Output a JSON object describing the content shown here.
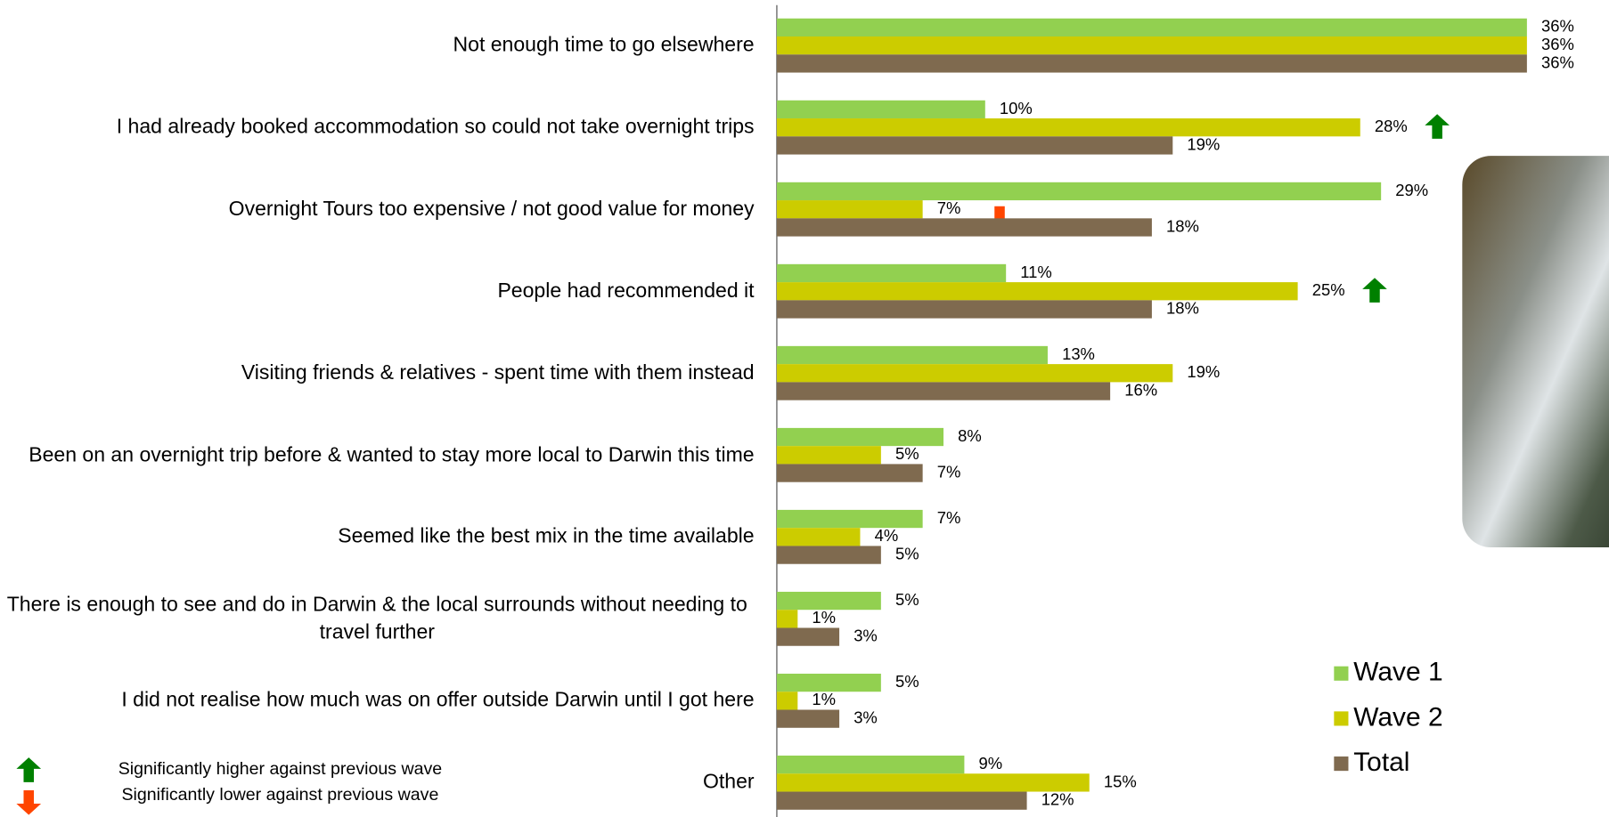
{
  "chart_data": {
    "type": "hbar",
    "categories": [
      "Not enough time to go elsewhere",
      "I had already booked accommodation so could not take overnight trips",
      "Overnight Tours too expensive / not good value for money",
      "People had recommended it",
      "Visiting friends & relatives - spent time with them instead",
      "Been on an overnight trip before & wanted to stay more local to Darwin this time",
      "Seemed like the best mix in the time available",
      "There is enough to see and do in Darwin & the local surrounds without needing to travel further",
      "I did not realise how much was on offer outside Darwin until I got here",
      "Other"
    ],
    "series": [
      {
        "name": "Wave 1",
        "color": "#92d050",
        "values": [
          36,
          10,
          29,
          11,
          13,
          8,
          7,
          5,
          5,
          9
        ],
        "value_labels": [
          "36%",
          "10%",
          "29%",
          "11%",
          "13%",
          "8%",
          "7%",
          "5%",
          "5%",
          "9%"
        ]
      },
      {
        "name": "Wave 2",
        "color": "#cccc00",
        "values": [
          36,
          28,
          7,
          25,
          19,
          5,
          4,
          1,
          1,
          15
        ],
        "value_labels": [
          "36%",
          "28%",
          "7%",
          "25%",
          "19%",
          "5%",
          "4%",
          "1%",
          "1%",
          "15%"
        ],
        "significance": [
          null,
          "up",
          "down",
          "up",
          null,
          null,
          null,
          null,
          null,
          null
        ]
      },
      {
        "name": "Total",
        "color": "#7f6a4f",
        "values": [
          36,
          19,
          18,
          18,
          16,
          7,
          5,
          3,
          3,
          12
        ],
        "value_labels": [
          "36%",
          "19%",
          "18%",
          "18%",
          "16%",
          "7%",
          "5%",
          "3%",
          "3%",
          "12%"
        ]
      }
    ],
    "xlim": [
      0,
      36
    ],
    "legend": "right",
    "significance_legend": {
      "up": "Significantly higher against previous wave",
      "down": "Significantly lower against previous wave",
      "up_color": "#008000",
      "down_color": "#ff4500"
    }
  }
}
